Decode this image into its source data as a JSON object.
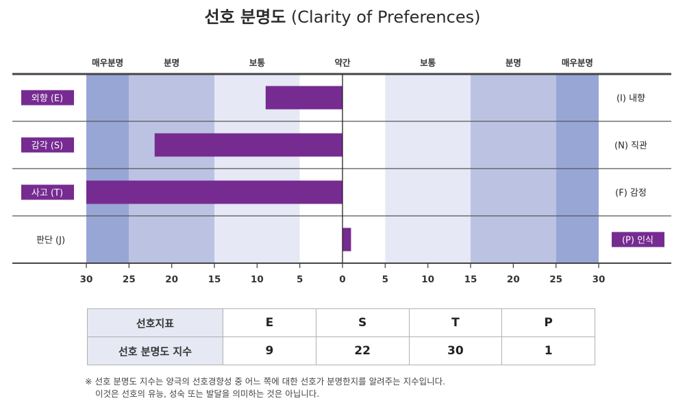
{
  "title": {
    "korean": "선호 분명도",
    "english": "(Clarity of Preferences)"
  },
  "chart_data": {
    "type": "bar",
    "orientation": "horizontal-diverging",
    "title": "선호 분명도 (Clarity of Preferences)",
    "xlim": [
      -30,
      30
    ],
    "tick_values": [
      -30,
      -25,
      -20,
      -15,
      -10,
      -5,
      0,
      5,
      10,
      15,
      20,
      25,
      30
    ],
    "tick_labels": [
      "30",
      "25",
      "20",
      "15",
      "10",
      "5",
      "0",
      "5",
      "10",
      "15",
      "20",
      "25",
      "30"
    ],
    "zones": [
      {
        "label": "매우분명",
        "range": [
          -30,
          -25
        ],
        "color": "#98a6d6"
      },
      {
        "label": "분명",
        "range": [
          -25,
          -15
        ],
        "color": "#bcc3e2"
      },
      {
        "label": "보통",
        "range": [
          -15,
          -5
        ],
        "color": "#e6e8f5"
      },
      {
        "label": "약간",
        "range": [
          -5,
          5
        ],
        "color": "#ffffff"
      },
      {
        "label": "보통",
        "range": [
          5,
          15
        ],
        "color": "#e6e8f5"
      },
      {
        "label": "분명",
        "range": [
          15,
          25
        ],
        "color": "#bcc3e2"
      },
      {
        "label": "매우분명",
        "range": [
          25,
          30
        ],
        "color": "#98a6d6"
      }
    ],
    "bar_color": "#762b91",
    "rows": [
      {
        "left": "외향 (E)",
        "right": "(I) 내향",
        "value": -9,
        "selected": "left"
      },
      {
        "left": "감각 (S)",
        "right": "(N) 직관",
        "value": -22,
        "selected": "left"
      },
      {
        "left": "사고 (T)",
        "right": "(F) 감정",
        "value": -30,
        "selected": "left"
      },
      {
        "left": "판단 (J)",
        "right": "(P) 인식",
        "value": 1,
        "selected": "right"
      }
    ]
  },
  "table": {
    "row1_label": "선호지표",
    "row2_label": "선호 분명도 지수",
    "columns": [
      {
        "letter": "E",
        "score": "9"
      },
      {
        "letter": "S",
        "score": "22"
      },
      {
        "letter": "T",
        "score": "30"
      },
      {
        "letter": "P",
        "score": "1"
      }
    ]
  },
  "note": {
    "line1": "※ 선호 분명도 지수는 양극의 선호경향성 중 어느 쪽에 대한 선호가 분명한지를 알려주는 지수입니다.",
    "line2": "이것은 선호의 유능, 성숙 또는 발달을 의미하는 것은 아닙니다."
  }
}
